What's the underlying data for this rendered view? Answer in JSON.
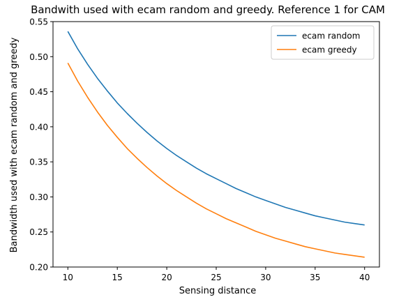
{
  "chart_data": {
    "type": "line",
    "title": "Bandwith used with ecam random and greedy. Reference 1 for CAM",
    "xlabel": "Sensing distance",
    "ylabel": "Bandwidth used with ecam random and greedy",
    "xlim": [
      8.5,
      41.5
    ],
    "ylim": [
      0.2,
      0.55
    ],
    "xticks": [
      10,
      15,
      20,
      25,
      30,
      35,
      40
    ],
    "xtick_labels": [
      "10",
      "15",
      "20",
      "25",
      "30",
      "35",
      "40"
    ],
    "yticks": [
      0.2,
      0.25,
      0.3,
      0.35,
      0.4,
      0.45,
      0.5,
      0.55
    ],
    "ytick_labels": [
      "0.20",
      "0.25",
      "0.30",
      "0.35",
      "0.40",
      "0.45",
      "0.50",
      "0.55"
    ],
    "grid": false,
    "legend_position": "top-right",
    "x": [
      10,
      11,
      12,
      13,
      14,
      15,
      16,
      17,
      18,
      19,
      20,
      21,
      22,
      23,
      24,
      25,
      26,
      27,
      28,
      29,
      30,
      31,
      32,
      33,
      34,
      35,
      36,
      37,
      38,
      39,
      40
    ],
    "series": [
      {
        "name": "ecam random",
        "color": "#1f77b4",
        "values": [
          0.536,
          0.511,
          0.489,
          0.469,
          0.451,
          0.434,
          0.419,
          0.405,
          0.392,
          0.38,
          0.369,
          0.359,
          0.35,
          0.341,
          0.333,
          0.326,
          0.319,
          0.312,
          0.306,
          0.3,
          0.295,
          0.29,
          0.285,
          0.281,
          0.277,
          0.273,
          0.27,
          0.267,
          0.264,
          0.262,
          0.26
        ]
      },
      {
        "name": "ecam greedy",
        "color": "#ff7f0e",
        "values": [
          0.491,
          0.465,
          0.442,
          0.421,
          0.402,
          0.385,
          0.369,
          0.355,
          0.342,
          0.33,
          0.319,
          0.309,
          0.3,
          0.291,
          0.283,
          0.276,
          0.269,
          0.263,
          0.257,
          0.251,
          0.246,
          0.241,
          0.237,
          0.233,
          0.229,
          0.226,
          0.223,
          0.22,
          0.218,
          0.216,
          0.214
        ]
      }
    ]
  }
}
